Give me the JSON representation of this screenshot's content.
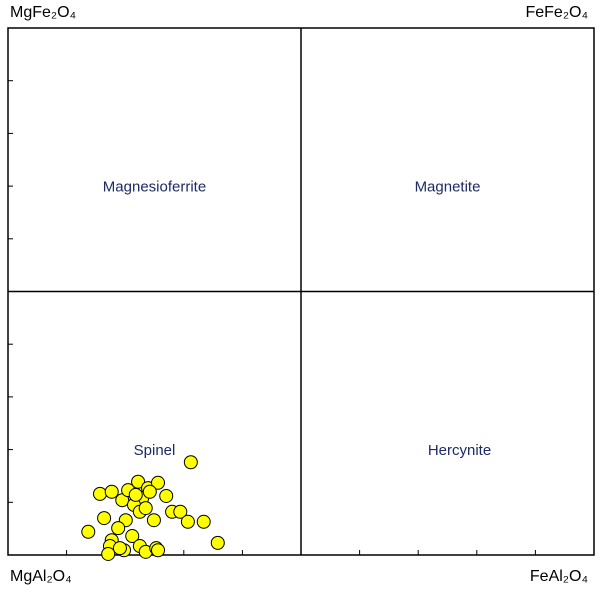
{
  "chart_data": {
    "type": "scatter",
    "corner_labels": {
      "top_left": "MgFe₂O₄",
      "top_right": "FeFe₂O₄",
      "bottom_left": "MgAl₂O₄",
      "bottom_right": "FeAl₂O₄"
    },
    "regions": [
      "Magnesioferrite",
      "Magnetite",
      "Spinel",
      "Hercynite"
    ],
    "xlim": [
      0,
      1
    ],
    "ylim": [
      0,
      1
    ],
    "xticks": [
      0,
      0.1,
      0.2,
      0.3,
      0.4,
      0.5,
      0.6,
      0.7,
      0.8,
      0.9,
      1
    ],
    "yticks": [
      0,
      0.1,
      0.2,
      0.3,
      0.4,
      0.5,
      0.6,
      0.7,
      0.8,
      0.9,
      1
    ],
    "series": [
      {
        "color": "#ffff00",
        "x": [
          0.312,
          0.157,
          0.177,
          0.137,
          0.164,
          0.195,
          0.205,
          0.222,
          0.239,
          0.256,
          0.27,
          0.229,
          0.242,
          0.215,
          0.225,
          0.249,
          0.201,
          0.188,
          0.177,
          0.212,
          0.28,
          0.294,
          0.307,
          0.334,
          0.358,
          0.174,
          0.171,
          0.198,
          0.225,
          0.235,
          0.253,
          0.256,
          0.235,
          0.218,
          0.191
        ],
        "values": [
          0.176,
          0.116,
          0.12,
          0.044,
          0.07,
          0.104,
          0.123,
          0.139,
          0.127,
          0.137,
          0.112,
          0.108,
          0.12,
          0.095,
          0.082,
          0.066,
          0.066,
          0.051,
          0.028,
          0.036,
          0.082,
          0.082,
          0.063,
          0.063,
          0.023,
          0.017,
          0.002,
          0.009,
          0.017,
          0.006,
          0.013,
          0.009,
          0.089,
          0.114,
          0.013
        ]
      }
    ]
  }
}
